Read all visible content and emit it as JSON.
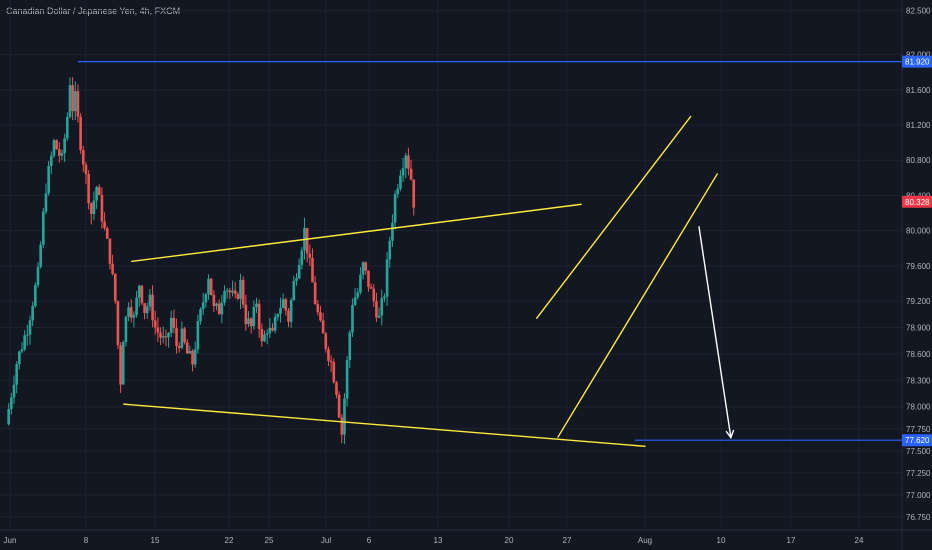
{
  "chart_data": {
    "type": "candlestick",
    "title": "Canadian Dollar / Japanese Yen, 4h, FXCM",
    "ylim": [
      76.6,
      82.62
    ],
    "y_ticks": [
      "82.500",
      "82.000",
      "81.600",
      "81.200",
      "80.800",
      "80.400",
      "80.000",
      "79.600",
      "79.200",
      "78.900",
      "78.600",
      "78.300",
      "78.000",
      "77.750",
      "77.500",
      "77.250",
      "77.000",
      "76.750"
    ],
    "x_ticks": [
      "Jun",
      "8",
      "15",
      "22",
      "25",
      "Jul",
      "6",
      "13",
      "20",
      "27",
      "Aug",
      "10",
      "17",
      "24"
    ],
    "price_labels": [
      {
        "text": "81.920",
        "value": 81.92,
        "color": "#2962ff"
      },
      {
        "text": "80.328",
        "value": 80.328,
        "color": "#f23645"
      },
      {
        "text": "77.620",
        "value": 77.62,
        "color": "#2962ff"
      }
    ],
    "horizontal_lines": [
      {
        "value": 81.92,
        "color": "#2962ff"
      },
      {
        "value": 77.62,
        "color": "#2962ff"
      }
    ],
    "candle_series": [
      {
        "x": 0,
        "close": 77.8
      },
      {
        "x": 2,
        "close": 78.5
      },
      {
        "x": 4,
        "close": 78.9
      },
      {
        "x": 6,
        "close": 79.5
      },
      {
        "x": 7.5,
        "close": 80.5
      },
      {
        "x": 9,
        "close": 81.0
      },
      {
        "x": 10.5,
        "close": 80.8
      },
      {
        "x": 11.5,
        "close": 81.3
      },
      {
        "x": 12,
        "close": 81.7
      },
      {
        "x": 12.5,
        "close": 81.4
      },
      {
        "x": 13,
        "close": 81.5
      },
      {
        "x": 14,
        "close": 81.0
      },
      {
        "x": 15,
        "close": 80.6
      },
      {
        "x": 16,
        "close": 80.2
      },
      {
        "x": 17,
        "close": 80.5
      },
      {
        "x": 18.5,
        "close": 80.0
      },
      {
        "x": 19.5,
        "close": 79.7
      },
      {
        "x": 20.5,
        "close": 79.2
      },
      {
        "x": 21,
        "close": 78.7
      },
      {
        "x": 21.5,
        "close": 78.3
      },
      {
        "x": 22,
        "close": 78.8
      },
      {
        "x": 23,
        "close": 79.2
      },
      {
        "x": 24,
        "close": 79.0
      },
      {
        "x": 25,
        "close": 79.4
      },
      {
        "x": 26,
        "close": 79.1
      },
      {
        "x": 27,
        "close": 79.2
      },
      {
        "x": 28,
        "close": 78.9
      },
      {
        "x": 29,
        "close": 78.8
      },
      {
        "x": 30,
        "close": 78.7
      },
      {
        "x": 31,
        "close": 79.0
      },
      {
        "x": 32,
        "close": 78.7
      },
      {
        "x": 33,
        "close": 78.8
      },
      {
        "x": 34,
        "close": 78.6
      },
      {
        "x": 35,
        "close": 78.5
      },
      {
        "x": 36,
        "close": 78.9
      },
      {
        "x": 37,
        "close": 79.2
      },
      {
        "x": 38,
        "close": 79.5
      },
      {
        "x": 39,
        "close": 79.1
      },
      {
        "x": 40,
        "close": 79.1
      },
      {
        "x": 41,
        "close": 79.4
      },
      {
        "x": 42,
        "close": 79.3
      },
      {
        "x": 43,
        "close": 79.2
      },
      {
        "x": 44,
        "close": 79.4
      },
      {
        "x": 45,
        "close": 79.0
      },
      {
        "x": 46,
        "close": 78.9
      },
      {
        "x": 47,
        "close": 79.2
      },
      {
        "x": 48,
        "close": 78.7
      },
      {
        "x": 49,
        "close": 78.9
      },
      {
        "x": 50,
        "close": 78.8
      },
      {
        "x": 51,
        "close": 79.1
      },
      {
        "x": 52,
        "close": 79.2
      },
      {
        "x": 53,
        "close": 79.0
      },
      {
        "x": 54,
        "close": 79.4
      },
      {
        "x": 55,
        "close": 79.7
      },
      {
        "x": 56,
        "close": 80.0
      },
      {
        "x": 57,
        "close": 79.6
      },
      {
        "x": 58,
        "close": 79.2
      },
      {
        "x": 59,
        "close": 78.9
      },
      {
        "x": 60,
        "close": 78.7
      },
      {
        "x": 61,
        "close": 78.5
      },
      {
        "x": 62,
        "close": 78.2
      },
      {
        "x": 63,
        "close": 77.7
      },
      {
        "x": 64,
        "close": 78.5
      },
      {
        "x": 65,
        "close": 79.2
      },
      {
        "x": 66,
        "close": 79.3
      },
      {
        "x": 67,
        "close": 79.6
      },
      {
        "x": 68,
        "close": 79.4
      },
      {
        "x": 69,
        "close": 79.2
      },
      {
        "x": 70,
        "close": 79.0
      },
      {
        "x": 71,
        "close": 79.3
      },
      {
        "x": 72,
        "close": 79.9
      },
      {
        "x": 73,
        "close": 80.4
      },
      {
        "x": 74,
        "close": 80.7
      },
      {
        "x": 75,
        "close": 80.9
      },
      {
        "x": 76,
        "close": 80.6
      },
      {
        "x": 76.5,
        "close": 80.328
      }
    ],
    "annotations": [
      {
        "kind": "trendline",
        "color": "#ffeb3b",
        "from": {
          "x": 23.5,
          "y": 79.65
        },
        "to": {
          "x": 108,
          "y": 80.3
        }
      },
      {
        "kind": "trendline",
        "color": "#ffeb3b",
        "from": {
          "x": 22,
          "y": 78.03
        },
        "to": {
          "x": 120,
          "y": 77.55
        }
      },
      {
        "kind": "trendline",
        "color": "#ffeb3b",
        "from": {
          "x": 99.5,
          "y": 79.0
        },
        "to": {
          "x": 128.5,
          "y": 81.3
        }
      },
      {
        "kind": "trendline",
        "color": "#ffeb3b",
        "from": {
          "x": 103.5,
          "y": 77.65
        },
        "to": {
          "x": 133.5,
          "y": 80.65
        }
      },
      {
        "kind": "arrow",
        "color": "#ffffff",
        "from": {
          "x": 130,
          "y": 80.05
        },
        "to": {
          "x": 136,
          "y": 77.65
        }
      }
    ]
  }
}
